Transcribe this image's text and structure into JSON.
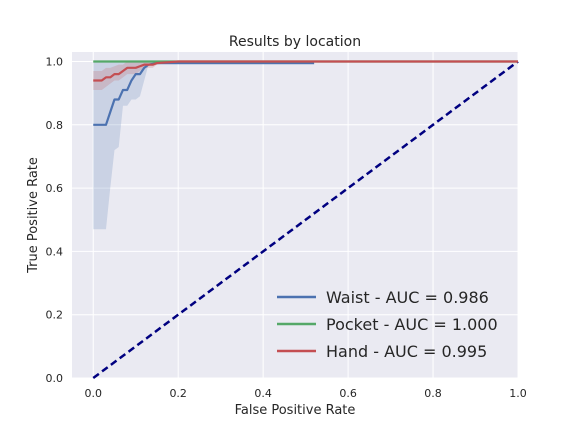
{
  "chart_data": {
    "type": "line",
    "title": "Results by location",
    "xlabel": "False Positive Rate",
    "ylabel": "True Positive Rate",
    "xlim": [
      -0.05,
      1.0
    ],
    "ylim": [
      0.0,
      1.03
    ],
    "xticks": [
      0.0,
      0.2,
      0.4,
      0.6,
      0.8,
      1.0
    ],
    "xtick_labels": [
      "0.0",
      "0.2",
      "0.4",
      "0.6",
      "0.8",
      "1.0"
    ],
    "yticks": [
      0.0,
      0.2,
      0.4,
      0.6,
      0.8,
      1.0
    ],
    "ytick_labels": [
      "0.0",
      "0.2",
      "0.4",
      "0.6",
      "0.8",
      "1.0"
    ],
    "grid": true,
    "legend_position": "lower-right",
    "series": [
      {
        "name": "Waist - AUC = 0.986",
        "color": "#4c72b0",
        "x": [
          0.0,
          0.03,
          0.04,
          0.05,
          0.06,
          0.07,
          0.08,
          0.09,
          0.1,
          0.11,
          0.12,
          0.13,
          0.15,
          0.52
        ],
        "y": [
          0.8,
          0.8,
          0.84,
          0.88,
          0.88,
          0.91,
          0.91,
          0.94,
          0.96,
          0.96,
          0.98,
          0.99,
          0.995,
          0.995
        ],
        "band_lower": [
          0.47,
          0.47,
          0.6,
          0.72,
          0.73,
          0.86,
          0.86,
          0.88,
          0.88,
          0.89,
          0.94,
          0.99,
          0.99,
          0.99
        ],
        "band_upper": [
          1.0,
          1.0,
          1.0,
          1.0,
          1.0,
          1.0,
          1.0,
          1.0,
          1.0,
          1.0,
          1.0,
          1.0,
          1.0,
          1.0
        ]
      },
      {
        "name": "Pocket - AUC = 1.000",
        "color": "#55a868",
        "x": [
          0.0,
          1.0
        ],
        "y": [
          1.0,
          1.0
        ]
      },
      {
        "name": "Hand - AUC = 0.995",
        "color": "#c44e52",
        "x": [
          0.0,
          0.02,
          0.03,
          0.04,
          0.05,
          0.06,
          0.07,
          0.08,
          0.1,
          0.11,
          0.12,
          0.14,
          0.15,
          0.2,
          1.0
        ],
        "y": [
          0.94,
          0.94,
          0.95,
          0.95,
          0.96,
          0.96,
          0.97,
          0.98,
          0.98,
          0.985,
          0.99,
          0.99,
          0.995,
          1.0,
          1.0
        ],
        "band_lower": [
          0.91,
          0.91,
          0.92,
          0.93,
          0.94,
          0.94,
          0.95,
          0.96,
          0.96,
          0.97,
          0.98,
          0.98,
          0.99,
          1.0,
          1.0
        ],
        "band_upper": [
          0.97,
          0.97,
          0.98,
          0.98,
          0.985,
          0.99,
          0.99,
          1.0,
          1.0,
          1.0,
          1.0,
          1.0,
          1.0,
          1.0,
          1.0
        ]
      }
    ],
    "reference_line": {
      "color": "#000080",
      "x": [
        0.0,
        1.0
      ],
      "y": [
        0.0,
        1.0
      ],
      "style": "dashed"
    }
  }
}
